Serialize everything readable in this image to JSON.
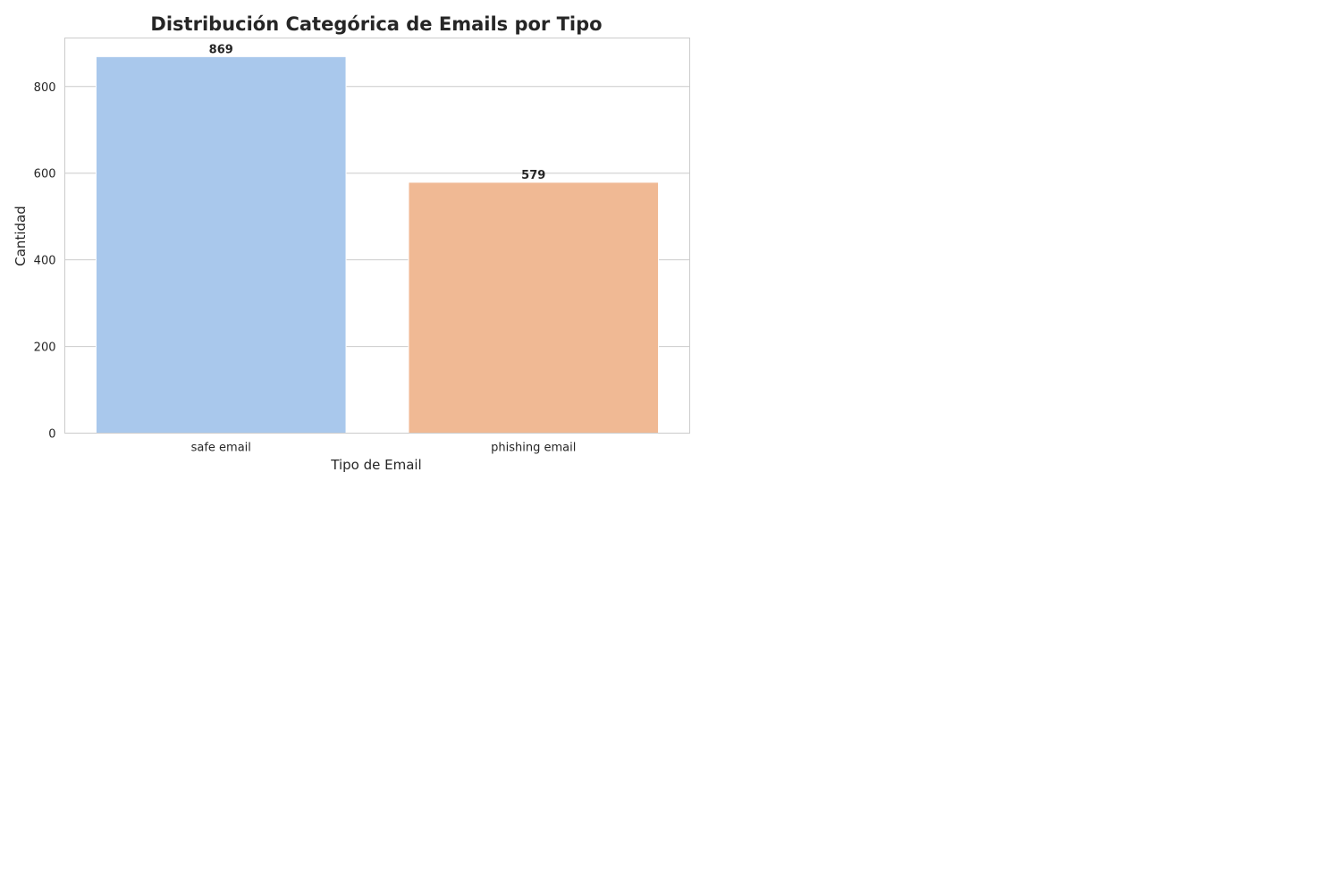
{
  "chart_data": {
    "type": "bar",
    "title": "Distribución Categórica de Emails por Tipo",
    "xlabel": "Tipo de Email",
    "ylabel": "Cantidad",
    "categories": [
      "safe email",
      "phishing email"
    ],
    "values": [
      869,
      579
    ],
    "value_labels": [
      "869",
      "579"
    ],
    "ylim": [
      0,
      912
    ],
    "yticks": [
      0,
      200,
      400,
      600,
      800
    ],
    "ytick_labels": [
      "0",
      "200",
      "400",
      "600",
      "800"
    ],
    "grid": "horizontal",
    "legend": "none",
    "colors": [
      "#a9c8ec",
      "#f0b994"
    ]
  }
}
